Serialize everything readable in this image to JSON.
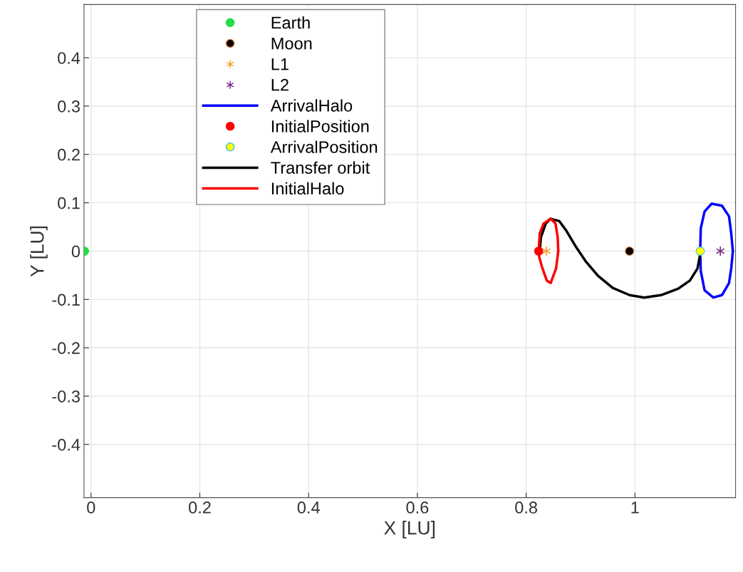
{
  "chart_data": {
    "type": "line",
    "xlabel": "X [LU]",
    "ylabel": "Y [LU]",
    "xlim": [
      -0.013,
      1.185
    ],
    "ylim": [
      -0.51,
      0.51
    ],
    "xticks": [
      0,
      0.2,
      0.4,
      0.6,
      0.8,
      1
    ],
    "yticks": [
      -0.4,
      -0.3,
      -0.2,
      -0.1,
      0,
      0.1,
      0.2,
      0.3,
      0.4
    ],
    "grid": true,
    "legend": "top left",
    "series": [
      {
        "name": "Earth",
        "type": "scatter",
        "marker": "circle",
        "color": "#22dd44",
        "x": [
          -0.01215
        ],
        "values": [
          0
        ]
      },
      {
        "name": "Moon",
        "type": "scatter",
        "marker": "circle",
        "color": "#000000",
        "x": [
          0.99
        ],
        "values": [
          0
        ]
      },
      {
        "name": "L1",
        "type": "scatter",
        "marker": "cross",
        "color": "#f0a030",
        "x": [
          0.837
        ],
        "values": [
          0
        ]
      },
      {
        "name": "L2",
        "type": "scatter",
        "marker": "cross",
        "color": "#7e2f8e",
        "x": [
          1.157
        ],
        "values": [
          0
        ]
      },
      {
        "name": "ArrivalHalo",
        "color": "#0000ff",
        "x": [
          1.12,
          1.121,
          1.128,
          1.141,
          1.16,
          1.173,
          1.177,
          1.18,
          null,
          1.12,
          1.121,
          1.128,
          1.144,
          1.16,
          1.173,
          1.177,
          1.18
        ],
        "values": [
          0.0,
          0.047,
          0.082,
          0.098,
          0.094,
          0.072,
          0.037,
          0.0,
          null,
          0.0,
          -0.041,
          -0.081,
          -0.096,
          -0.091,
          -0.066,
          -0.036,
          0.0
        ]
      },
      {
        "name": "InitialPosition",
        "type": "scatter",
        "marker": "circle",
        "color": "#ff0000",
        "x": [
          0.823
        ],
        "values": [
          0
        ]
      },
      {
        "name": "ArrivalPosition",
        "type": "scatter",
        "marker": "circle",
        "color": "#ffff00",
        "x": [
          1.12
        ],
        "values": [
          0
        ]
      },
      {
        "name": "Transfer orbit",
        "color": "#000000",
        "x": [
          0.825,
          0.827,
          0.836,
          0.845,
          0.861,
          0.874,
          0.892,
          0.91,
          0.932,
          0.959,
          0.99,
          1.017,
          1.048,
          1.079,
          1.101,
          1.115,
          1.119,
          1.12
        ],
        "values": [
          0.0,
          0.028,
          0.057,
          0.067,
          0.062,
          0.042,
          0.008,
          -0.022,
          -0.051,
          -0.076,
          -0.091,
          -0.096,
          -0.091,
          -0.078,
          -0.061,
          -0.036,
          -0.012,
          0.0
        ]
      },
      {
        "name": "InitialHalo",
        "color": "#ff0000",
        "x": [
          0.823,
          0.825,
          0.832,
          0.845,
          0.854,
          0.858,
          0.859,
          null,
          0.823,
          0.824,
          0.83,
          0.838,
          0.845,
          0.855,
          0.859
        ],
        "values": [
          0.0,
          0.037,
          0.057,
          0.067,
          0.057,
          0.028,
          0.0,
          null,
          0.0,
          -0.012,
          -0.036,
          -0.061,
          -0.066,
          -0.036,
          0.0
        ]
      }
    ]
  }
}
